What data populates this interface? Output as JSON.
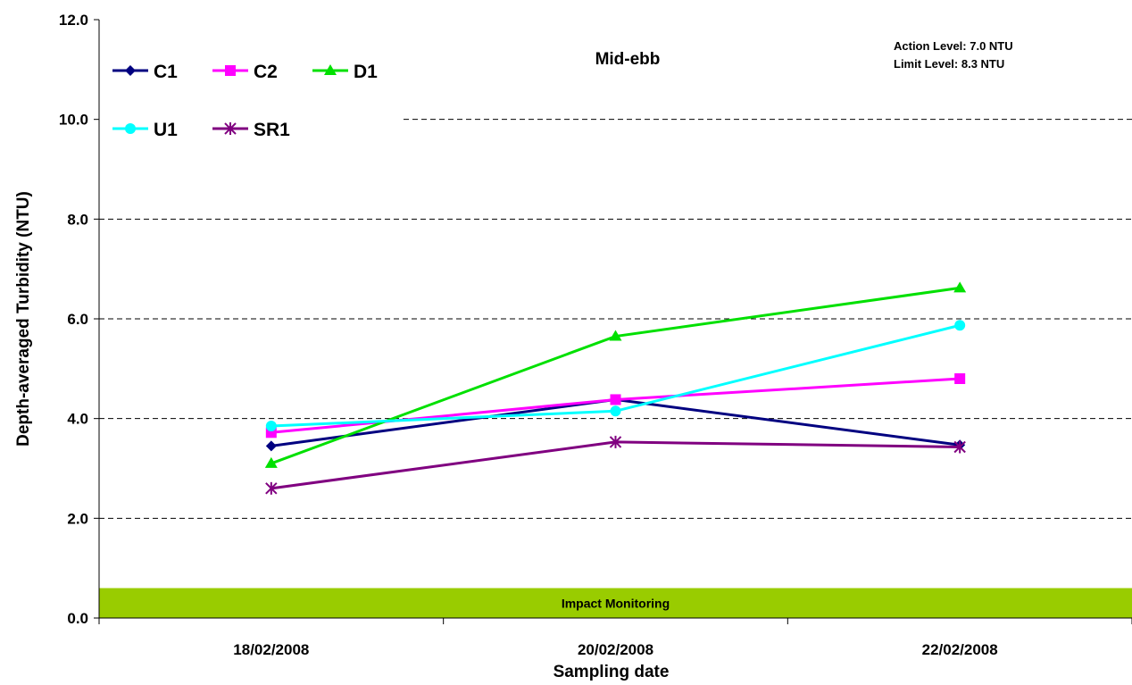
{
  "chart_data": {
    "type": "line",
    "title": "Mid-ebb",
    "xlabel": "Sampling date",
    "ylabel": "Depth-averaged Turbidity (NTU)",
    "ylim": [
      0,
      12
    ],
    "yticks": [
      "0.0",
      "2.0",
      "4.0",
      "6.0",
      "8.0",
      "10.0",
      "12.0"
    ],
    "grid": "horizontal dashed",
    "legend_position": "top-left",
    "categories": [
      "18/02/2008",
      "20/02/2008",
      "22/02/2008"
    ],
    "series": [
      {
        "name": "C1",
        "color": "#000080",
        "marker": "diamond",
        "values": [
          3.45,
          4.38,
          3.47
        ]
      },
      {
        "name": "C2",
        "color": "#FF00FF",
        "marker": "square",
        "values": [
          3.72,
          4.38,
          4.8
        ]
      },
      {
        "name": "D1",
        "color": "#00E000",
        "marker": "triangle",
        "values": [
          3.1,
          5.65,
          6.62
        ]
      },
      {
        "name": "U1",
        "color": "#00FFFF",
        "marker": "circle",
        "values": [
          3.85,
          4.15,
          5.87
        ]
      },
      {
        "name": "SR1",
        "color": "#800080",
        "marker": "star",
        "values": [
          2.6,
          3.53,
          3.43
        ]
      }
    ],
    "annotations": {
      "action_level": "Action Level: 7.0 NTU",
      "limit_level": "Limit Level: 8.3 NTU",
      "band_label": "Impact Monitoring",
      "band_color": "#99CC00",
      "band_range": [
        0,
        0.6
      ]
    }
  }
}
